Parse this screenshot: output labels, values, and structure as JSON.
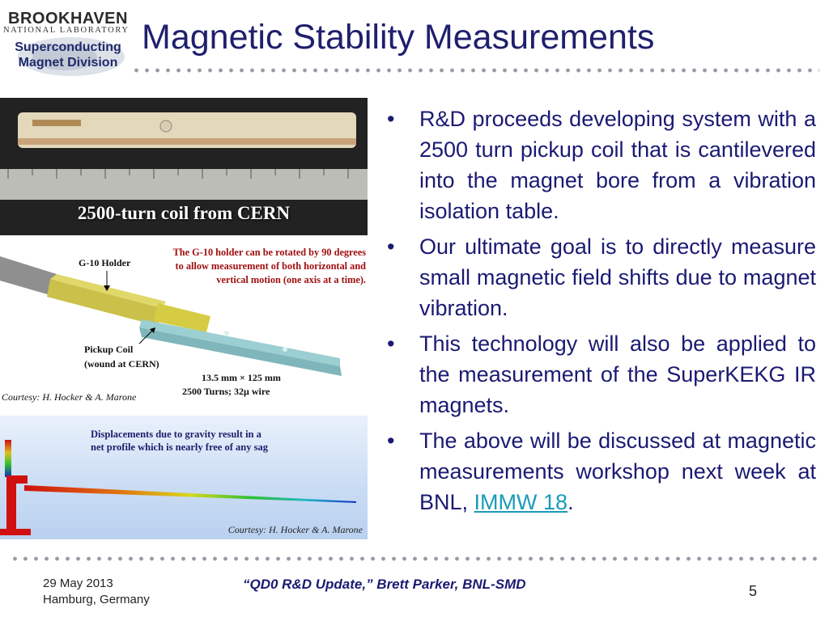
{
  "logo": {
    "name": "BROOKHAVEN",
    "subtitle": "NATIONAL LABORATORY",
    "division_line1": "Superconducting",
    "division_line2": "Magnet Division"
  },
  "title": "Magnetic Stability Measurements",
  "photo": {
    "caption": "2500-turn coil from CERN"
  },
  "diagram": {
    "holder_label": "G-10 Holder",
    "note_lines": [
      "The G-10 holder can be rotated by 90 degrees",
      "to allow measurement of both horizontal and",
      "vertical motion (one axis at a time)."
    ],
    "pickup_line1": "Pickup Coil",
    "pickup_line2": "(wound at CERN)",
    "dims_line1": "13.5 mm × 125 mm",
    "dims_line2": "2500 Turns; 32μ wire",
    "courtesy": "Courtesy: H. Hocker & A. Marone"
  },
  "fea": {
    "caption_line1": "Displacements due to gravity result in a",
    "caption_line2": "net profile which is nearly free of any sag",
    "courtesy": "Courtesy: H. Hocker & A. Marone"
  },
  "bullets": [
    "R&D proceeds developing system with a 2500 turn pickup coil that is cantilevered into the magnet bore from a vibration isolation table.",
    "Our ultimate goal is to directly measure small magnetic field shifts due to magnet vibration.",
    "This technology will also be applied to the measurement of the SuperKEKG IR magnets.",
    "The above will be discussed at magnetic measurements workshop next week at BNL,"
  ],
  "bullet_marker": "•",
  "link": {
    "text": "IMMW 18",
    "after": "."
  },
  "footer": {
    "date": "29 May 2013",
    "location": "Hamburg, Germany",
    "center": "“QD0 R&D Update,” Brett Parker, BNL-SMD",
    "page": "5"
  },
  "colors": {
    "title": "#1f1f6e",
    "body_text": "#1a1a73",
    "link": "#1a9bb7",
    "diagram_note": "#a01010"
  }
}
